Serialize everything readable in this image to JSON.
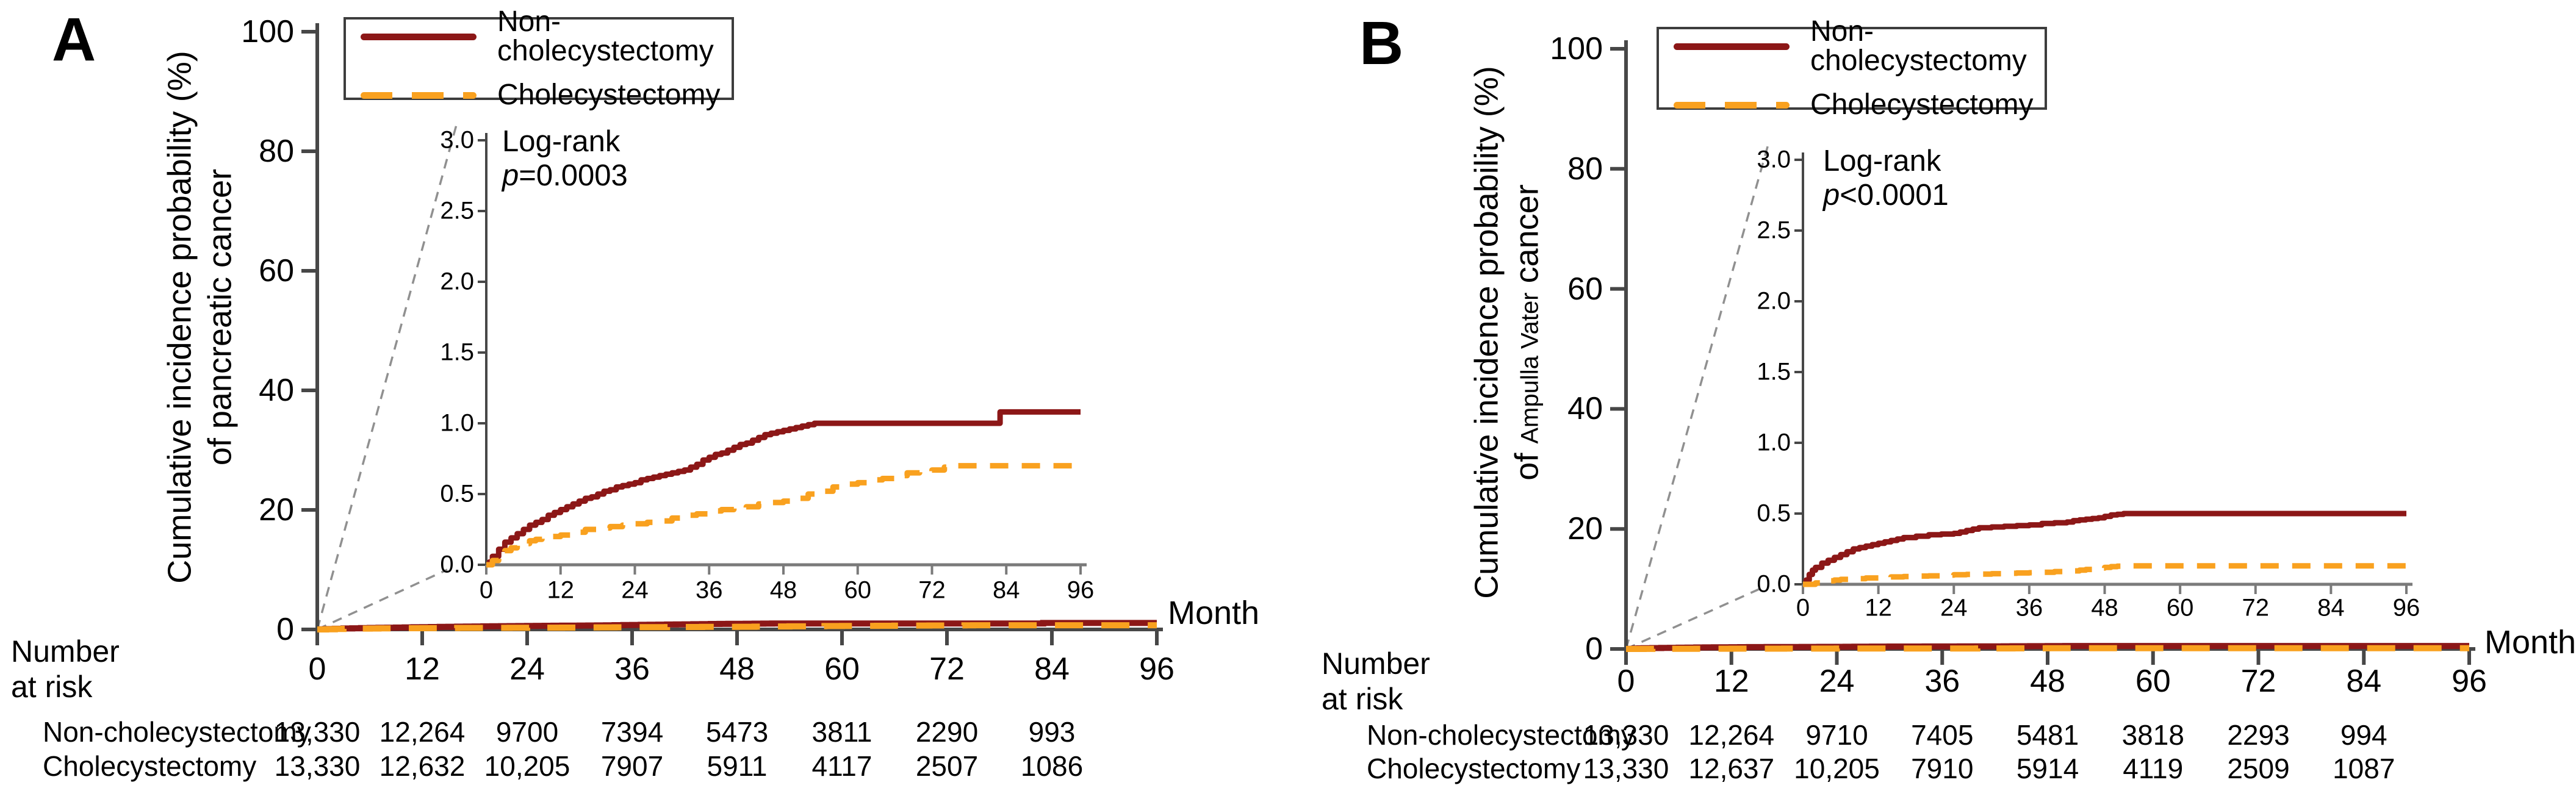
{
  "colors": {
    "non_cholecystectomy": "#8c1717",
    "cholecystectomy": "#f9a11f",
    "axis": "#474747",
    "inset_x_axis": "#7a7a7a",
    "connector": "#909090",
    "text": "#000000"
  },
  "chart_data": {
    "type": "line",
    "panels": [
      {
        "panel_label": "A",
        "y_axis": {
          "title_line1": "Cumulative incidence probability (%)",
          "title_line2_prefix": "of pancreatic cancer",
          "title_line2_small": "",
          "title_line2_suffix": "",
          "ticks": [
            0,
            20,
            40,
            60,
            80,
            100
          ],
          "range": [
            0,
            100
          ]
        },
        "x_axis": {
          "title": "Month",
          "ticks": [
            0,
            12,
            24,
            36,
            48,
            60,
            72,
            84,
            96
          ],
          "range": [
            0,
            96
          ]
        },
        "legend": {
          "items": [
            {
              "label": "Non-cholecystectomy",
              "line_style": "solid"
            },
            {
              "label": "Cholecystectomy",
              "line_style": "dashed"
            }
          ]
        },
        "inset": {
          "logrank_label": "Log-rank ",
          "logrank_symbol": "p",
          "logrank_value": "=0.0003",
          "y_ticks": [
            "0.0",
            "0.5",
            "1.0",
            "1.5",
            "2.0",
            "2.5",
            "3.0"
          ],
          "x_ticks": [
            0,
            12,
            24,
            36,
            48,
            60,
            72,
            84,
            96
          ],
          "y_range": [
            0,
            3
          ]
        },
        "series": [
          {
            "name": "Non-cholecystectomy",
            "style": "solid",
            "color_key": "non_cholecystectomy",
            "points_pct": [
              [
                0,
                0
              ],
              [
                0.5,
                0.02
              ],
              [
                1,
                0.06
              ],
              [
                2,
                0.11
              ],
              [
                3,
                0.16
              ],
              [
                4,
                0.19
              ],
              [
                5,
                0.22
              ],
              [
                6,
                0.25
              ],
              [
                7,
                0.28
              ],
              [
                8,
                0.3
              ],
              [
                9,
                0.32
              ],
              [
                10,
                0.35
              ],
              [
                11,
                0.37
              ],
              [
                12,
                0.39
              ],
              [
                13,
                0.41
              ],
              [
                14,
                0.43
              ],
              [
                15,
                0.45
              ],
              [
                16,
                0.47
              ],
              [
                17,
                0.48
              ],
              [
                18,
                0.5
              ],
              [
                19,
                0.52
              ],
              [
                20,
                0.53
              ],
              [
                21,
                0.55
              ],
              [
                22,
                0.56
              ],
              [
                23,
                0.57
              ],
              [
                24,
                0.58
              ],
              [
                25,
                0.6
              ],
              [
                26,
                0.61
              ],
              [
                27,
                0.62
              ],
              [
                28,
                0.63
              ],
              [
                29,
                0.64
              ],
              [
                30,
                0.65
              ],
              [
                31,
                0.66
              ],
              [
                32,
                0.67
              ],
              [
                33,
                0.69
              ],
              [
                34,
                0.71
              ],
              [
                35,
                0.74
              ],
              [
                36,
                0.76
              ],
              [
                37,
                0.78
              ],
              [
                38,
                0.79
              ],
              [
                39,
                0.81
              ],
              [
                40,
                0.83
              ],
              [
                41,
                0.85
              ],
              [
                42,
                0.86
              ],
              [
                43,
                0.88
              ],
              [
                44,
                0.9
              ],
              [
                45,
                0.92
              ],
              [
                46,
                0.93
              ],
              [
                47,
                0.94
              ],
              [
                48,
                0.95
              ],
              [
                49,
                0.96
              ],
              [
                50,
                0.97
              ],
              [
                51,
                0.98
              ],
              [
                52,
                0.99
              ],
              [
                53,
                1.0
              ],
              [
                82,
                1.0
              ],
              [
                83,
                1.08
              ],
              [
                96,
                1.08
              ]
            ]
          },
          {
            "name": "Cholecystectomy",
            "style": "dashed",
            "color_key": "cholecystectomy",
            "points_pct": [
              [
                0,
                0
              ],
              [
                1,
                0.03
              ],
              [
                2,
                0.07
              ],
              [
                3,
                0.1
              ],
              [
                4,
                0.12
              ],
              [
                5,
                0.14
              ],
              [
                6,
                0.15
              ],
              [
                7,
                0.17
              ],
              [
                8,
                0.18
              ],
              [
                9,
                0.19
              ],
              [
                10,
                0.2
              ],
              [
                12,
                0.21
              ],
              [
                14,
                0.23
              ],
              [
                16,
                0.25
              ],
              [
                18,
                0.26
              ],
              [
                20,
                0.27
              ],
              [
                22,
                0.28
              ],
              [
                24,
                0.29
              ],
              [
                26,
                0.3
              ],
              [
                28,
                0.31
              ],
              [
                30,
                0.33
              ],
              [
                32,
                0.35
              ],
              [
                34,
                0.36
              ],
              [
                36,
                0.38
              ],
              [
                38,
                0.39
              ],
              [
                40,
                0.4
              ],
              [
                42,
                0.41
              ],
              [
                44,
                0.43
              ],
              [
                46,
                0.44
              ],
              [
                48,
                0.45
              ],
              [
                50,
                0.47
              ],
              [
                52,
                0.5
              ],
              [
                54,
                0.52
              ],
              [
                56,
                0.55
              ],
              [
                58,
                0.57
              ],
              [
                60,
                0.58
              ],
              [
                62,
                0.6
              ],
              [
                64,
                0.61
              ],
              [
                66,
                0.63
              ],
              [
                68,
                0.65
              ],
              [
                70,
                0.66
              ],
              [
                72,
                0.67
              ],
              [
                74,
                0.69
              ],
              [
                75,
                0.7
              ],
              [
                96,
                0.7
              ]
            ]
          }
        ],
        "number_at_risk": {
          "header": "Number at risk",
          "rows": [
            {
              "label": "Non-cholecystectomy",
              "values": [
                "13,330",
                "12,264",
                "9700",
                "7394",
                "5473",
                "3811",
                "2290",
                "993"
              ]
            },
            {
              "label": "Cholecystectomy",
              "values": [
                "13,330",
                "12,632",
                "10,205",
                "7907",
                "5911",
                "4117",
                "2507",
                "1086"
              ]
            }
          ]
        }
      },
      {
        "panel_label": "B",
        "y_axis": {
          "title_line1": "Cumulative incidence probability (%)",
          "title_line2_prefix": "of ",
          "title_line2_small": "Ampulla Vater",
          "title_line2_suffix": " cancer",
          "ticks": [
            0,
            20,
            40,
            60,
            80,
            100
          ],
          "range": [
            0,
            100
          ]
        },
        "x_axis": {
          "title": "Month",
          "ticks": [
            0,
            12,
            24,
            36,
            48,
            60,
            72,
            84,
            96
          ],
          "range": [
            0,
            96
          ]
        },
        "legend": {
          "items": [
            {
              "label": "Non-cholecystectomy",
              "line_style": "solid"
            },
            {
              "label": "Cholecystectomy",
              "line_style": "dashed"
            }
          ]
        },
        "inset": {
          "logrank_label": "Log-rank ",
          "logrank_symbol": "p",
          "logrank_value": "<0.0001",
          "y_ticks": [
            "0.0",
            "0.5",
            "1.0",
            "1.5",
            "2.0",
            "2.5",
            "3.0"
          ],
          "x_ticks": [
            0,
            12,
            24,
            36,
            48,
            60,
            72,
            84,
            96
          ],
          "y_range": [
            0,
            3
          ]
        },
        "series": [
          {
            "name": "Non-cholecystectomy",
            "style": "solid",
            "color_key": "non_cholecystectomy",
            "points_pct": [
              [
                0,
                0
              ],
              [
                0.5,
                0.03
              ],
              [
                1,
                0.07
              ],
              [
                1.5,
                0.1
              ],
              [
                2,
                0.12
              ],
              [
                3,
                0.15
              ],
              [
                4,
                0.17
              ],
              [
                5,
                0.19
              ],
              [
                6,
                0.21
              ],
              [
                7,
                0.23
              ],
              [
                8,
                0.25
              ],
              [
                9,
                0.26
              ],
              [
                10,
                0.27
              ],
              [
                11,
                0.28
              ],
              [
                12,
                0.29
              ],
              [
                13,
                0.3
              ],
              [
                14,
                0.31
              ],
              [
                15,
                0.32
              ],
              [
                16,
                0.33
              ],
              [
                18,
                0.34
              ],
              [
                20,
                0.35
              ],
              [
                22,
                0.355
              ],
              [
                24,
                0.36
              ],
              [
                25,
                0.37
              ],
              [
                26,
                0.38
              ],
              [
                27,
                0.39
              ],
              [
                28,
                0.4
              ],
              [
                30,
                0.405
              ],
              [
                32,
                0.41
              ],
              [
                34,
                0.415
              ],
              [
                36,
                0.42
              ],
              [
                38,
                0.43
              ],
              [
                40,
                0.435
              ],
              [
                42,
                0.44
              ],
              [
                43,
                0.45
              ],
              [
                44,
                0.455
              ],
              [
                45,
                0.46
              ],
              [
                46,
                0.465
              ],
              [
                47,
                0.47
              ],
              [
                48,
                0.48
              ],
              [
                49,
                0.49
              ],
              [
                50,
                0.495
              ],
              [
                51,
                0.5
              ],
              [
                96,
                0.5
              ]
            ]
          },
          {
            "name": "Cholecystectomy",
            "style": "dashed",
            "color_key": "cholecystectomy",
            "points_pct": [
              [
                0,
                0
              ],
              [
                2,
                0.01
              ],
              [
                3,
                0.02
              ],
              [
                4,
                0.025
              ],
              [
                5,
                0.03
              ],
              [
                6,
                0.035
              ],
              [
                8,
                0.04
              ],
              [
                10,
                0.045
              ],
              [
                12,
                0.05
              ],
              [
                14,
                0.052
              ],
              [
                16,
                0.055
              ],
              [
                18,
                0.058
              ],
              [
                20,
                0.06
              ],
              [
                22,
                0.065
              ],
              [
                24,
                0.068
              ],
              [
                26,
                0.07
              ],
              [
                28,
                0.072
              ],
              [
                30,
                0.075
              ],
              [
                32,
                0.078
              ],
              [
                34,
                0.08
              ],
              [
                36,
                0.082
              ],
              [
                38,
                0.085
              ],
              [
                40,
                0.09
              ],
              [
                42,
                0.095
              ],
              [
                44,
                0.1
              ],
              [
                45,
                0.105
              ],
              [
                46,
                0.11
              ],
              [
                47,
                0.115
              ],
              [
                48,
                0.12
              ],
              [
                49,
                0.125
              ],
              [
                50,
                0.128
              ],
              [
                51,
                0.13
              ],
              [
                96,
                0.13
              ]
            ]
          }
        ],
        "number_at_risk": {
          "header": "Number at risk",
          "rows": [
            {
              "label": "Non-cholecystectomy",
              "values": [
                "13,330",
                "12,264",
                "9710",
                "7405",
                "5481",
                "3818",
                "2293",
                "994"
              ]
            },
            {
              "label": "Cholecystectomy",
              "values": [
                "13,330",
                "12,637",
                "10,205",
                "7910",
                "5914",
                "4119",
                "2509",
                "1087"
              ]
            }
          ]
        }
      }
    ]
  }
}
